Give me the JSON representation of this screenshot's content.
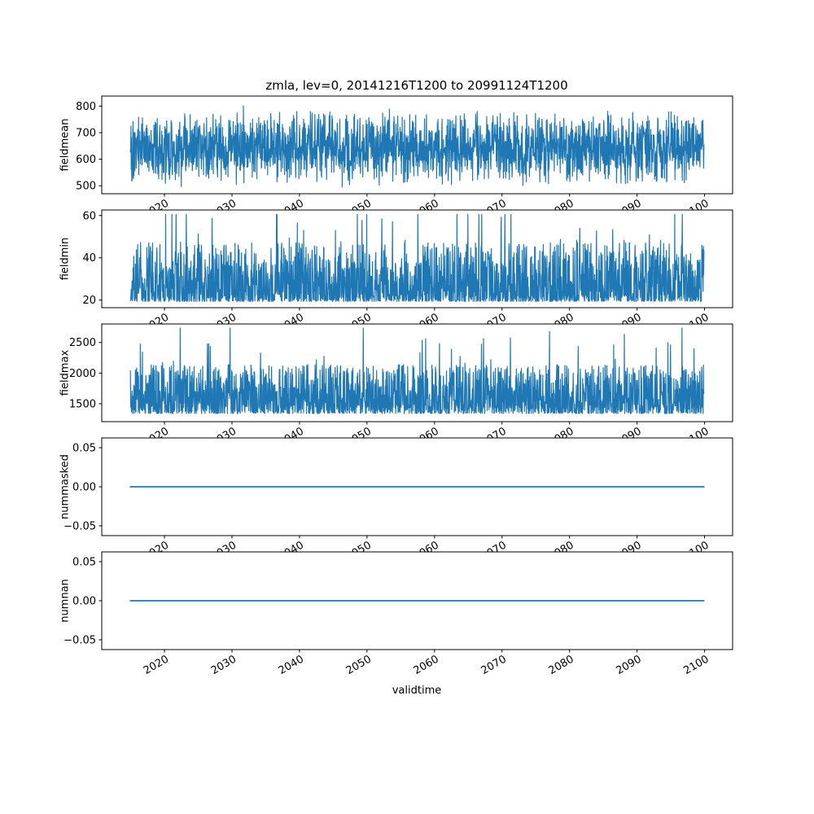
{
  "figure": {
    "title": "zmla, lev=0, 20141216T1200 to 20991124T1200",
    "xlabel": "validtime",
    "background": "#ffffff",
    "line_color": "#1f77b4",
    "text_color": "#000000"
  },
  "chart_data": {
    "type": "line",
    "title": "zmla, lev=0, 20141216T1200 to 20991124T1200",
    "xlabel": "validtime",
    "legend": "none",
    "grid": false,
    "x": {
      "label": "validtime",
      "lim": [
        2010.71,
        2104.15
      ],
      "start": 2014.96,
      "end": 2099.9,
      "ticks": [
        2020,
        2030,
        2040,
        2050,
        2060,
        2070,
        2080,
        2090,
        2100
      ],
      "tick_labels": [
        "2020",
        "2030",
        "2040",
        "2050",
        "2060",
        "2070",
        "2080",
        "2090",
        "2100"
      ]
    },
    "subplots": [
      {
        "ylabel": "fieldmean",
        "ylim": [
          470,
          838
        ],
        "yticks": [
          500,
          600,
          700,
          800
        ],
        "ytick_labels": [
          "500",
          "600",
          "700",
          "800"
        ],
        "series": {
          "kind": "noise",
          "mode": "sym",
          "center": 642,
          "amp": 150,
          "spike_prob": 0.03,
          "spike_min": 15,
          "spike_max": 45,
          "clamp": [
            488,
            822
          ],
          "n": 2200,
          "seed": 101
        },
        "summary": {
          "approx_mean": 640,
          "approx_min": 490,
          "approx_max": 820
        }
      },
      {
        "ylabel": "fieldmin",
        "ylim": [
          16.4,
          62.6
        ],
        "yticks": [
          20,
          40,
          60
        ],
        "ytick_labels": [
          "20",
          "40",
          "60"
        ],
        "series": {
          "kind": "noise",
          "mode": "skew",
          "base": 19.4,
          "k": 2.2,
          "range": 28,
          "spike_prob": 0.03,
          "spike_min": 12,
          "spike_max": 35,
          "clamp": [
            18.6,
            60.5
          ],
          "n": 2200,
          "seed": 202
        },
        "summary": {
          "approx_min": 19,
          "approx_max": 60,
          "dense_band": [
            20,
            40
          ]
        }
      },
      {
        "ylabel": "fieldmax",
        "ylim": [
          1207,
          2802
        ],
        "yticks": [
          1500,
          2000,
          2500
        ],
        "ytick_labels": [
          "1500",
          "2000",
          "2500"
        ],
        "series": {
          "kind": "noise",
          "mode": "skew",
          "base": 1340,
          "k": 1.9,
          "range": 800,
          "spike_prob": 0.025,
          "spike_min": 300,
          "spike_max": 1000,
          "clamp": [
            1290,
            2735
          ],
          "n": 2200,
          "seed": 303
        },
        "summary": {
          "approx_min": 1300,
          "approx_max": 2730,
          "dense_band": [
            1350,
            2100
          ]
        }
      },
      {
        "ylabel": "nummasked",
        "ylim": [
          -0.0625,
          0.0625
        ],
        "yticks": [
          -0.05,
          0,
          0.05
        ],
        "ytick_labels": [
          "−0.05",
          "0.00",
          "0.05"
        ],
        "series": {
          "kind": "constant",
          "value": 0
        },
        "summary": {
          "constant": 0
        }
      },
      {
        "ylabel": "numnan",
        "ylim": [
          -0.0625,
          0.0625
        ],
        "yticks": [
          -0.05,
          0,
          0.05
        ],
        "ytick_labels": [
          "−0.05",
          "0.00",
          "0.05"
        ],
        "series": {
          "kind": "constant",
          "value": 0
        },
        "summary": {
          "constant": 0
        }
      }
    ]
  }
}
